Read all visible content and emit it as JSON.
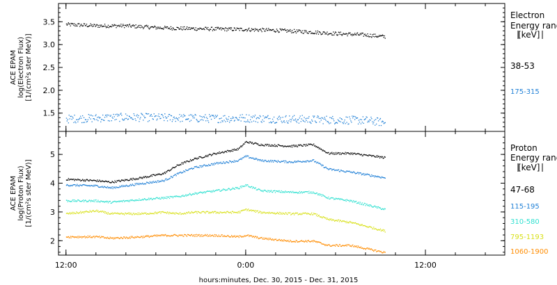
{
  "x_axis": {
    "label": "hours:minutes, Dec. 30, 2015 - Dec. 31, 2015",
    "ticks": [
      {
        "t": 0,
        "label": "12:00"
      },
      {
        "t": 12,
        "label": "0:00"
      },
      {
        "t": 24,
        "label": "12:00"
      }
    ],
    "range_hours": [
      -0.5,
      29.3
    ],
    "minor_tick_every_hours": 2
  },
  "chart_data": [
    {
      "type": "scatter",
      "panel": "electron",
      "ylabel": [
        "ACE EPAM",
        "log(Electron Flux)",
        "[1/(cm²s ster MeV)]"
      ],
      "ylim": [
        1.1,
        3.9
      ],
      "yticks": [
        1.5,
        2.0,
        2.5,
        3.0,
        3.5
      ],
      "legend_title": [
        "Electron",
        "Energy ranges",
        "[keV]"
      ],
      "series": [
        {
          "name": "38-53",
          "color": "#000000",
          "x": [
            0,
            2,
            4,
            6,
            8,
            10,
            12,
            14,
            16,
            18,
            20,
            21.3
          ],
          "values": [
            3.45,
            3.42,
            3.42,
            3.38,
            3.36,
            3.35,
            3.34,
            3.32,
            3.29,
            3.25,
            3.22,
            3.18
          ]
        },
        {
          "name": "175-315",
          "color": "#1e7fd6",
          "x": [
            0,
            2,
            4,
            6,
            8,
            10,
            12,
            14,
            16,
            18,
            20,
            21.3
          ],
          "values": [
            1.38,
            1.4,
            1.42,
            1.41,
            1.4,
            1.39,
            1.4,
            1.38,
            1.37,
            1.36,
            1.35,
            1.3
          ]
        }
      ]
    },
    {
      "type": "scatter",
      "panel": "proton",
      "ylabel": [
        "ACE EPAM",
        "log(Proton Flux)",
        "[1/(cm²s ster MeV)]"
      ],
      "ylim": [
        1.5,
        5.8
      ],
      "yticks": [
        2,
        3,
        4,
        5
      ],
      "legend_title": [
        "Proton",
        "Energy ranges",
        "[keV]"
      ],
      "series": [
        {
          "name": "47-68",
          "color": "#000000",
          "x": [
            0,
            2,
            3,
            5,
            6.5,
            7.5,
            8.5,
            10,
            11.5,
            12,
            13,
            15,
            16.5,
            17.5,
            19,
            21.3
          ],
          "values": [
            4.15,
            4.1,
            4.05,
            4.2,
            4.35,
            4.65,
            4.85,
            5.05,
            5.2,
            5.45,
            5.35,
            5.3,
            5.35,
            5.05,
            5.05,
            4.9
          ]
        },
        {
          "name": "115-195",
          "color": "#1e7fd6",
          "x": [
            0,
            2,
            3,
            5,
            6.5,
            7.5,
            8.5,
            10,
            11.5,
            12,
            13,
            15,
            16.5,
            17.5,
            19,
            21.3
          ],
          "values": [
            3.95,
            3.92,
            3.85,
            4.0,
            4.1,
            4.35,
            4.55,
            4.7,
            4.8,
            4.95,
            4.8,
            4.75,
            4.8,
            4.5,
            4.4,
            4.2
          ]
        },
        {
          "name": "310-580",
          "color": "#2ee0d0",
          "x": [
            0,
            2,
            3,
            5,
            6.5,
            7.5,
            8.5,
            10,
            11.5,
            12,
            13,
            15,
            16.5,
            17.5,
            19,
            21.3
          ],
          "values": [
            3.4,
            3.4,
            3.35,
            3.45,
            3.5,
            3.55,
            3.65,
            3.75,
            3.85,
            3.95,
            3.75,
            3.7,
            3.7,
            3.5,
            3.4,
            3.1
          ]
        },
        {
          "name": "795-1193",
          "color": "#d8e018",
          "x": [
            0,
            2,
            3,
            5,
            6.5,
            7.5,
            8.5,
            10,
            11.5,
            12,
            13,
            15,
            16.5,
            17.5,
            19,
            21.3
          ],
          "values": [
            2.95,
            3.05,
            2.95,
            2.95,
            3.0,
            2.95,
            3.0,
            3.0,
            3.0,
            3.1,
            3.0,
            2.95,
            2.95,
            2.75,
            2.65,
            2.35
          ]
        },
        {
          "name": "1060-1900",
          "color": "#ff8c00",
          "x": [
            0,
            2,
            3,
            5,
            6.5,
            7.5,
            8.5,
            10,
            11.5,
            12,
            13,
            15,
            16.5,
            17.5,
            19,
            21.3
          ],
          "values": [
            2.15,
            2.15,
            2.1,
            2.15,
            2.2,
            2.2,
            2.2,
            2.2,
            2.15,
            2.2,
            2.1,
            2.0,
            2.0,
            1.85,
            1.85,
            1.6
          ]
        }
      ]
    }
  ]
}
